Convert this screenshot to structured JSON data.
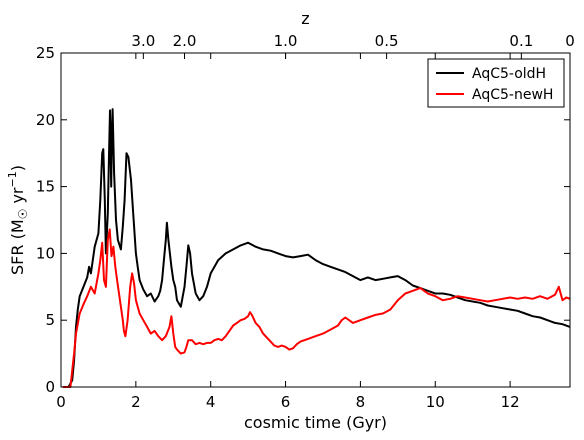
{
  "chart_data": {
    "type": "line",
    "xlabel": "cosmic time (Gyr)",
    "ylabel": "SFR (M☉ yr⁻¹)",
    "ylabel_parts": {
      "prefix": "SFR (M",
      "sun": "☉",
      "mid": " yr",
      "sup": "−1",
      "suffix": ")"
    },
    "top_axis_label": "z",
    "xlim": [
      0,
      13.6
    ],
    "ylim": [
      0,
      25
    ],
    "x_ticks": [
      0,
      2,
      4,
      6,
      8,
      10,
      12
    ],
    "y_ticks": [
      0,
      5,
      10,
      15,
      20,
      25
    ],
    "top_ticks": [
      {
        "label": "3.0",
        "time": 2.2
      },
      {
        "label": "2.0",
        "time": 3.3
      },
      {
        "label": "1.0",
        "time": 6.0
      },
      {
        "label": "0.5",
        "time": 8.7
      },
      {
        "label": "0.1",
        "time": 12.3
      },
      {
        "label": "0",
        "time": 13.6
      }
    ],
    "legend_position": "top-right",
    "grid": false,
    "series": [
      {
        "name": "AqC5-oldH",
        "color": "#000000",
        "points": [
          [
            0.05,
            0
          ],
          [
            0.2,
            0
          ],
          [
            0.3,
            0.5
          ],
          [
            0.35,
            2
          ],
          [
            0.4,
            4.5
          ],
          [
            0.45,
            5.8
          ],
          [
            0.5,
            6.8
          ],
          [
            0.6,
            7.5
          ],
          [
            0.7,
            8.2
          ],
          [
            0.75,
            9
          ],
          [
            0.8,
            8.5
          ],
          [
            0.9,
            10.5
          ],
          [
            1.0,
            11.5
          ],
          [
            1.05,
            14
          ],
          [
            1.1,
            17.5
          ],
          [
            1.13,
            17.8
          ],
          [
            1.17,
            14
          ],
          [
            1.2,
            10
          ],
          [
            1.25,
            13
          ],
          [
            1.28,
            17
          ],
          [
            1.31,
            20.7
          ],
          [
            1.34,
            15
          ],
          [
            1.36,
            19
          ],
          [
            1.38,
            20.8
          ],
          [
            1.42,
            16
          ],
          [
            1.47,
            12.5
          ],
          [
            1.52,
            11
          ],
          [
            1.6,
            10.3
          ],
          [
            1.65,
            12
          ],
          [
            1.7,
            14
          ],
          [
            1.75,
            17.5
          ],
          [
            1.8,
            17.2
          ],
          [
            1.87,
            15.5
          ],
          [
            1.93,
            13
          ],
          [
            2.0,
            10
          ],
          [
            2.05,
            9
          ],
          [
            2.1,
            8
          ],
          [
            2.2,
            7.3
          ],
          [
            2.3,
            6.8
          ],
          [
            2.4,
            7
          ],
          [
            2.5,
            6.4
          ],
          [
            2.6,
            6.8
          ],
          [
            2.65,
            7.2
          ],
          [
            2.7,
            8
          ],
          [
            2.75,
            9.5
          ],
          [
            2.8,
            11
          ],
          [
            2.83,
            12.3
          ],
          [
            2.87,
            11
          ],
          [
            2.95,
            9
          ],
          [
            3.0,
            8
          ],
          [
            3.05,
            7.5
          ],
          [
            3.1,
            6.5
          ],
          [
            3.2,
            6
          ],
          [
            3.3,
            7.5
          ],
          [
            3.35,
            9
          ],
          [
            3.4,
            10.6
          ],
          [
            3.45,
            10
          ],
          [
            3.5,
            8.5
          ],
          [
            3.6,
            7
          ],
          [
            3.7,
            6.5
          ],
          [
            3.8,
            6.8
          ],
          [
            3.9,
            7.5
          ],
          [
            4.0,
            8.5
          ],
          [
            4.2,
            9.5
          ],
          [
            4.4,
            10
          ],
          [
            4.6,
            10.3
          ],
          [
            4.8,
            10.6
          ],
          [
            5.0,
            10.8
          ],
          [
            5.2,
            10.5
          ],
          [
            5.4,
            10.3
          ],
          [
            5.6,
            10.2
          ],
          [
            5.8,
            10
          ],
          [
            6.0,
            9.8
          ],
          [
            6.2,
            9.7
          ],
          [
            6.4,
            9.8
          ],
          [
            6.6,
            9.9
          ],
          [
            6.8,
            9.5
          ],
          [
            7.0,
            9.2
          ],
          [
            7.2,
            9
          ],
          [
            7.4,
            8.8
          ],
          [
            7.6,
            8.6
          ],
          [
            7.8,
            8.3
          ],
          [
            8.0,
            8
          ],
          [
            8.2,
            8.2
          ],
          [
            8.4,
            8
          ],
          [
            8.6,
            8.1
          ],
          [
            8.8,
            8.2
          ],
          [
            9.0,
            8.3
          ],
          [
            9.2,
            8
          ],
          [
            9.4,
            7.6
          ],
          [
            9.6,
            7.4
          ],
          [
            9.8,
            7.2
          ],
          [
            10.0,
            7
          ],
          [
            10.2,
            7
          ],
          [
            10.4,
            6.9
          ],
          [
            10.6,
            6.7
          ],
          [
            10.8,
            6.5
          ],
          [
            11.0,
            6.4
          ],
          [
            11.2,
            6.3
          ],
          [
            11.4,
            6.1
          ],
          [
            11.6,
            6
          ],
          [
            11.8,
            5.9
          ],
          [
            12.0,
            5.8
          ],
          [
            12.2,
            5.7
          ],
          [
            12.4,
            5.5
          ],
          [
            12.6,
            5.3
          ],
          [
            12.8,
            5.2
          ],
          [
            13.0,
            5
          ],
          [
            13.2,
            4.8
          ],
          [
            13.4,
            4.7
          ],
          [
            13.6,
            4.5
          ]
        ]
      },
      {
        "name": "AqC5-newH",
        "color": "#ff0000",
        "points": [
          [
            0.05,
            0
          ],
          [
            0.25,
            0
          ],
          [
            0.35,
            2.5
          ],
          [
            0.4,
            4
          ],
          [
            0.5,
            5.5
          ],
          [
            0.6,
            6.2
          ],
          [
            0.7,
            6.8
          ],
          [
            0.8,
            7.5
          ],
          [
            0.9,
            7
          ],
          [
            1.0,
            8.5
          ],
          [
            1.05,
            9.5
          ],
          [
            1.1,
            10.8
          ],
          [
            1.15,
            8
          ],
          [
            1.2,
            7.5
          ],
          [
            1.25,
            11
          ],
          [
            1.3,
            11.8
          ],
          [
            1.35,
            9.8
          ],
          [
            1.4,
            10.5
          ],
          [
            1.45,
            9
          ],
          [
            1.5,
            8
          ],
          [
            1.55,
            7
          ],
          [
            1.6,
            6
          ],
          [
            1.65,
            5
          ],
          [
            1.68,
            4.2
          ],
          [
            1.72,
            3.8
          ],
          [
            1.78,
            5
          ],
          [
            1.85,
            7.5
          ],
          [
            1.9,
            8.5
          ],
          [
            1.95,
            7.8
          ],
          [
            2.0,
            6.5
          ],
          [
            2.1,
            5.5
          ],
          [
            2.2,
            5
          ],
          [
            2.3,
            4.5
          ],
          [
            2.4,
            4
          ],
          [
            2.5,
            4.2
          ],
          [
            2.6,
            3.8
          ],
          [
            2.7,
            3.5
          ],
          [
            2.8,
            3.8
          ],
          [
            2.9,
            4.5
          ],
          [
            2.95,
            5.3
          ],
          [
            3.0,
            4
          ],
          [
            3.05,
            3
          ],
          [
            3.1,
            2.8
          ],
          [
            3.2,
            2.5
          ],
          [
            3.3,
            2.6
          ],
          [
            3.35,
            3
          ],
          [
            3.4,
            3.5
          ],
          [
            3.5,
            3.5
          ],
          [
            3.6,
            3.2
          ],
          [
            3.7,
            3.3
          ],
          [
            3.8,
            3.2
          ],
          [
            3.9,
            3.3
          ],
          [
            4.0,
            3.3
          ],
          [
            4.1,
            3.5
          ],
          [
            4.2,
            3.6
          ],
          [
            4.3,
            3.5
          ],
          [
            4.4,
            3.8
          ],
          [
            4.5,
            4.2
          ],
          [
            4.6,
            4.6
          ],
          [
            4.7,
            4.8
          ],
          [
            4.8,
            5
          ],
          [
            4.9,
            5.1
          ],
          [
            5.0,
            5.3
          ],
          [
            5.05,
            5.6
          ],
          [
            5.1,
            5.4
          ],
          [
            5.2,
            4.8
          ],
          [
            5.3,
            4.5
          ],
          [
            5.4,
            4
          ],
          [
            5.5,
            3.7
          ],
          [
            5.6,
            3.4
          ],
          [
            5.7,
            3.1
          ],
          [
            5.8,
            3
          ],
          [
            5.9,
            3.1
          ],
          [
            6.0,
            3
          ],
          [
            6.1,
            2.8
          ],
          [
            6.2,
            2.9
          ],
          [
            6.3,
            3.2
          ],
          [
            6.4,
            3.4
          ],
          [
            6.5,
            3.5
          ],
          [
            6.6,
            3.6
          ],
          [
            6.8,
            3.8
          ],
          [
            7.0,
            4
          ],
          [
            7.2,
            4.3
          ],
          [
            7.4,
            4.6
          ],
          [
            7.5,
            5
          ],
          [
            7.6,
            5.2
          ],
          [
            7.8,
            4.8
          ],
          [
            8.0,
            5
          ],
          [
            8.2,
            5.2
          ],
          [
            8.4,
            5.4
          ],
          [
            8.6,
            5.5
          ],
          [
            8.8,
            5.8
          ],
          [
            9.0,
            6.5
          ],
          [
            9.2,
            7
          ],
          [
            9.4,
            7.2
          ],
          [
            9.6,
            7.4
          ],
          [
            9.8,
            7
          ],
          [
            10.0,
            6.8
          ],
          [
            10.2,
            6.5
          ],
          [
            10.4,
            6.6
          ],
          [
            10.6,
            6.8
          ],
          [
            10.8,
            6.7
          ],
          [
            11.0,
            6.6
          ],
          [
            11.2,
            6.5
          ],
          [
            11.4,
            6.4
          ],
          [
            11.6,
            6.5
          ],
          [
            11.8,
            6.6
          ],
          [
            12.0,
            6.7
          ],
          [
            12.2,
            6.6
          ],
          [
            12.4,
            6.7
          ],
          [
            12.6,
            6.6
          ],
          [
            12.8,
            6.8
          ],
          [
            13.0,
            6.6
          ],
          [
            13.2,
            6.9
          ],
          [
            13.3,
            7.5
          ],
          [
            13.4,
            6.5
          ],
          [
            13.5,
            6.7
          ],
          [
            13.6,
            6.6
          ]
        ]
      }
    ]
  }
}
